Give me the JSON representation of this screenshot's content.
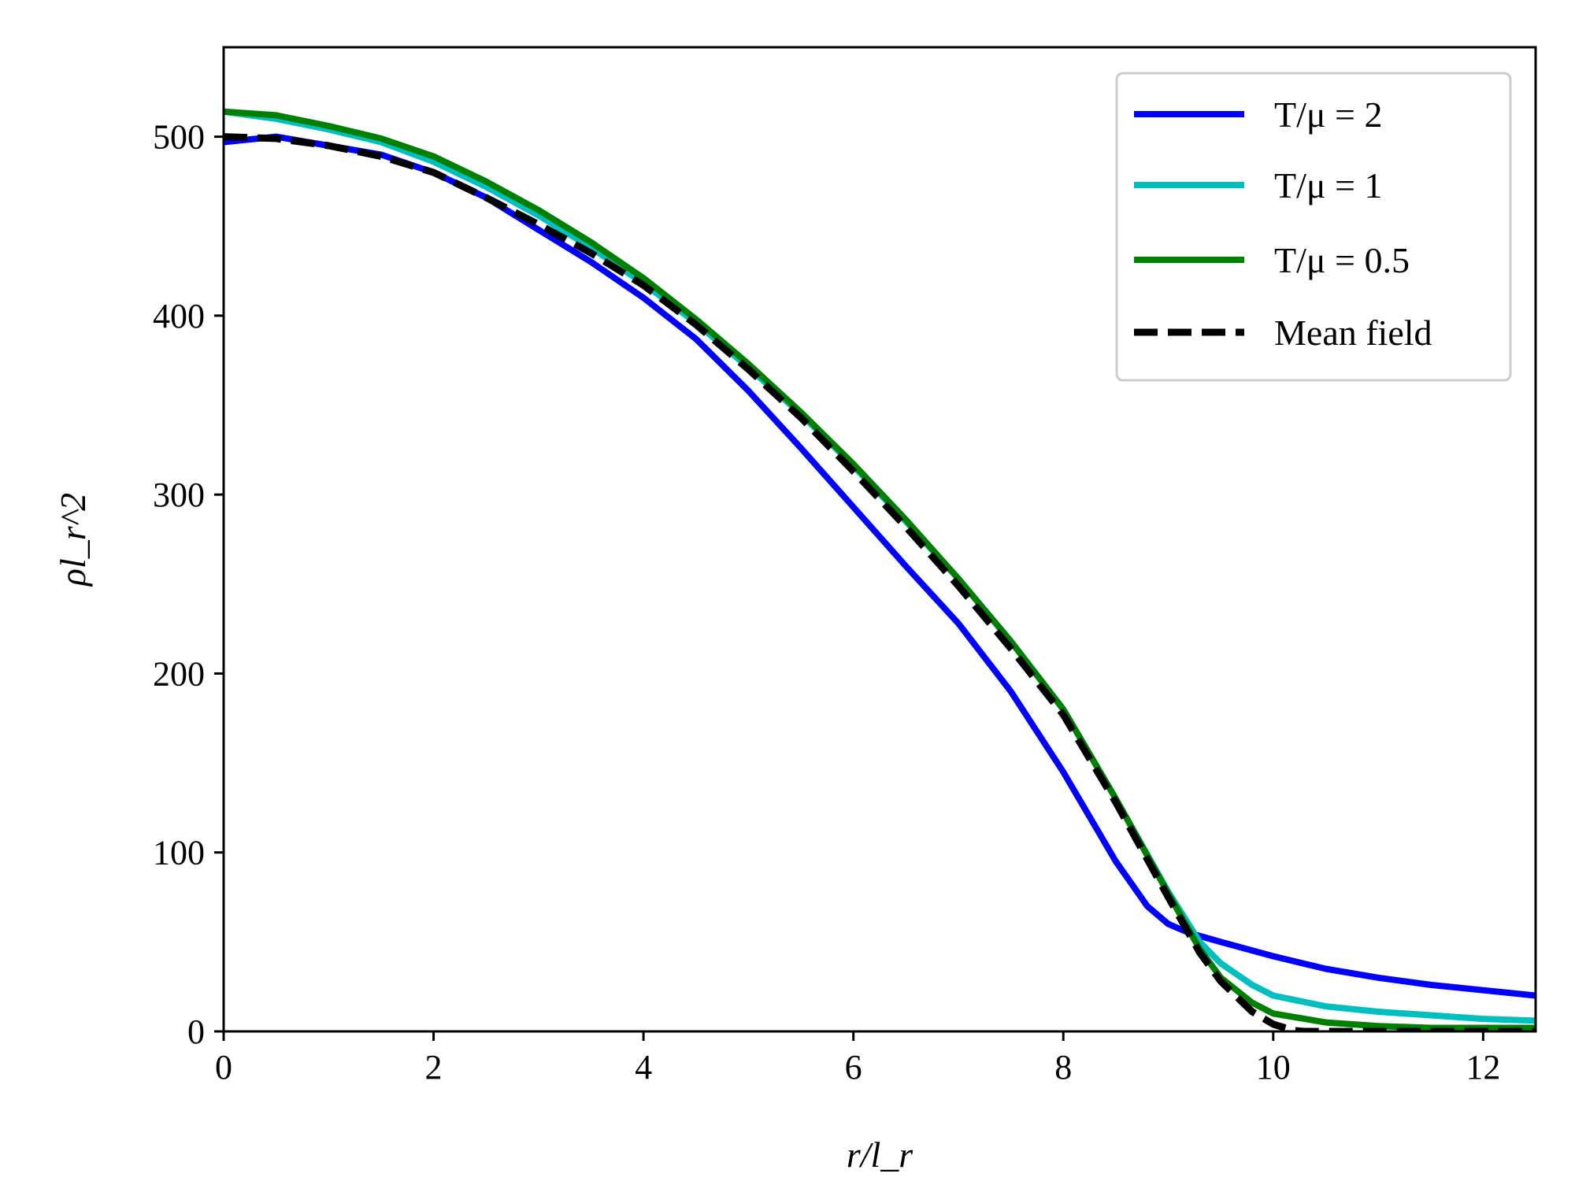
{
  "chart_data": {
    "type": "line",
    "title": "",
    "xlabel": "r/l_r",
    "ylabel": "ρl_r^2",
    "xlim": [
      0,
      12.5
    ],
    "ylim": [
      0,
      550
    ],
    "x_ticks": [
      "0",
      "2",
      "4",
      "6",
      "8",
      "10",
      "12"
    ],
    "y_ticks": [
      "0",
      "100",
      "200",
      "300",
      "400",
      "500"
    ],
    "x_tick_values": [
      0,
      2,
      4,
      6,
      8,
      10,
      12
    ],
    "y_tick_values": [
      0,
      100,
      200,
      300,
      400,
      500
    ],
    "grid": false,
    "legend_position": "top-right",
    "series": [
      {
        "name": "T/μ = 2",
        "color": "#0000ff",
        "style": "solid",
        "x": [
          0,
          0.5,
          1,
          1.5,
          2,
          2.5,
          3,
          3.5,
          4,
          4.5,
          5,
          5.5,
          6,
          6.5,
          7,
          7.5,
          8,
          8.5,
          8.8,
          9.0,
          9.2,
          9.5,
          10,
          10.5,
          11,
          11.5,
          12,
          12.5
        ],
        "y": [
          497,
          500,
          495,
          490,
          480,
          466,
          448,
          430,
          410,
          387,
          358,
          326,
          293,
          260,
          228,
          190,
          145,
          95,
          70,
          60,
          55,
          50,
          42,
          35,
          30,
          26,
          23,
          20
        ]
      },
      {
        "name": "T/μ = 1",
        "color": "#00bfbf",
        "style": "solid",
        "x": [
          0,
          0.5,
          1,
          1.5,
          2,
          2.5,
          3,
          3.5,
          4,
          4.5,
          5,
          5.5,
          6,
          6.5,
          7,
          7.5,
          8,
          8.5,
          9.0,
          9.3,
          9.5,
          9.8,
          10,
          10.5,
          11,
          11.5,
          12,
          12.5
        ],
        "y": [
          514,
          510,
          504,
          497,
          486,
          472,
          456,
          438,
          418,
          396,
          371,
          345,
          316,
          285,
          253,
          218,
          180,
          130,
          78,
          50,
          38,
          26,
          20,
          14,
          11,
          9,
          7,
          6
        ]
      },
      {
        "name": "T/μ = 0.5",
        "color": "#008000",
        "style": "solid",
        "x": [
          0,
          0.5,
          1,
          1.5,
          2,
          2.5,
          3,
          3.5,
          4,
          4.5,
          5,
          5.5,
          6,
          6.5,
          7,
          7.5,
          8,
          8.5,
          9.0,
          9.3,
          9.5,
          9.8,
          10,
          10.5,
          11,
          11.5,
          12,
          12.5
        ],
        "y": [
          514,
          512,
          506,
          499,
          489,
          475,
          459,
          441,
          421,
          398,
          373,
          346,
          317,
          286,
          253,
          218,
          180,
          130,
          77,
          46,
          30,
          16,
          10,
          5,
          3,
          2,
          2,
          2
        ]
      },
      {
        "name": "Mean field",
        "color": "#000000",
        "style": "dashed",
        "x": [
          0,
          0.5,
          1,
          1.5,
          2,
          2.5,
          3,
          3.5,
          4,
          4.5,
          5,
          5.5,
          6,
          6.5,
          7,
          7.5,
          8,
          8.5,
          9.0,
          9.3,
          9.5,
          9.8,
          10.0,
          10.2,
          10.3,
          12.5
        ],
        "y": [
          500,
          499,
          495,
          489,
          480,
          466,
          451,
          435,
          417,
          395,
          370,
          343,
          313,
          282,
          249,
          214,
          177,
          128,
          75,
          44,
          28,
          11,
          4,
          0.5,
          0,
          0
        ]
      }
    ]
  }
}
